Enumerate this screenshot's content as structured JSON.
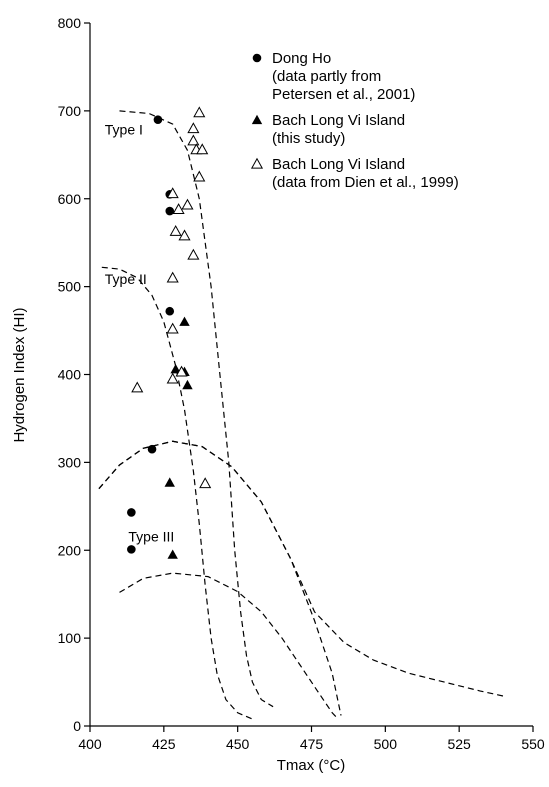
{
  "chart_data": {
    "type": "scatter",
    "title": "",
    "xlabel": "Tmax (°C)",
    "ylabel": "Hydrogen Index (HI)",
    "xlim": [
      400,
      550
    ],
    "ylim": [
      0,
      800
    ],
    "xticks": [
      400,
      425,
      450,
      475,
      500,
      525,
      550
    ],
    "yticks": [
      0,
      100,
      200,
      300,
      400,
      500,
      600,
      700,
      800
    ],
    "grid": false,
    "legend_position": "top-right",
    "series": [
      {
        "name": "Dong Ho",
        "name_line2": "(data partly from",
        "name_line3": "Petersen et al., 2001)",
        "marker": "filled-circle",
        "points": [
          [
            423,
            690
          ],
          [
            427,
            605
          ],
          [
            427,
            586
          ],
          [
            427,
            472
          ],
          [
            421,
            315
          ],
          [
            414,
            243
          ],
          [
            414,
            201
          ]
        ]
      },
      {
        "name": "Bach Long Vi Island",
        "name_line2": "(this study)",
        "name_line3": "",
        "marker": "filled-triangle",
        "points": [
          [
            432,
            460
          ],
          [
            429,
            406
          ],
          [
            432,
            403
          ],
          [
            433,
            388
          ],
          [
            427,
            277
          ],
          [
            428,
            195
          ]
        ]
      },
      {
        "name": "Bach Long Vi Island",
        "name_line2": "(data from Dien et al., 1999)",
        "name_line3": "",
        "marker": "open-triangle",
        "points": [
          [
            437,
            698
          ],
          [
            435,
            680
          ],
          [
            435,
            666
          ],
          [
            436,
            656
          ],
          [
            438,
            656
          ],
          [
            437,
            625
          ],
          [
            428,
            606
          ],
          [
            430,
            588
          ],
          [
            433,
            593
          ],
          [
            429,
            563
          ],
          [
            432,
            558
          ],
          [
            435,
            536
          ],
          [
            428,
            510
          ],
          [
            428,
            452
          ],
          [
            428,
            395
          ],
          [
            431,
            403
          ],
          [
            416,
            385
          ],
          [
            439,
            276
          ]
        ]
      }
    ],
    "type_curves": [
      {
        "label": "Type I",
        "label_at": [
          405,
          673
        ],
        "upper": [
          [
            410,
            700
          ],
          [
            420,
            697
          ],
          [
            428,
            685
          ],
          [
            433,
            655
          ],
          [
            437,
            600
          ],
          [
            441,
            500
          ],
          [
            444,
            400
          ],
          [
            447,
            300
          ],
          [
            449,
            200
          ],
          [
            451,
            130
          ],
          [
            453,
            80
          ],
          [
            455,
            50
          ],
          [
            458,
            30
          ],
          [
            462,
            22
          ]
        ],
        "lower": [
          [
            404,
            522
          ],
          [
            410,
            520
          ],
          [
            416,
            510
          ],
          [
            421,
            490
          ],
          [
            425,
            460
          ],
          [
            429,
            410
          ],
          [
            432,
            360
          ],
          [
            435,
            290
          ],
          [
            437,
            230
          ],
          [
            439,
            160
          ],
          [
            441,
            100
          ],
          [
            443,
            60
          ],
          [
            446,
            30
          ],
          [
            450,
            15
          ],
          [
            455,
            8
          ]
        ]
      },
      {
        "label": "Type II",
        "label_at": [
          405,
          503
        ],
        "upper": [
          [
            403,
            270
          ],
          [
            410,
            297
          ],
          [
            418,
            316
          ],
          [
            428,
            324
          ],
          [
            438,
            318
          ],
          [
            448,
            295
          ],
          [
            458,
            255
          ],
          [
            468,
            190
          ],
          [
            476,
            120
          ],
          [
            482,
            60
          ],
          [
            485,
            12
          ]
        ],
        "lower": [
          [
            410,
            152
          ],
          [
            418,
            168
          ],
          [
            428,
            174
          ],
          [
            440,
            170
          ],
          [
            450,
            153
          ],
          [
            458,
            130
          ],
          [
            465,
            100
          ],
          [
            471,
            70
          ],
          [
            477,
            40
          ],
          [
            482,
            15
          ],
          [
            484,
            8
          ]
        ]
      },
      {
        "label": "Type III",
        "label_at": [
          413,
          210
        ],
        "upper": [
          [
            403,
            270
          ],
          [
            410,
            297
          ],
          [
            418,
            316
          ],
          [
            428,
            324
          ],
          [
            438,
            318
          ],
          [
            448,
            295
          ],
          [
            458,
            255
          ],
          [
            468,
            190
          ],
          [
            476,
            130
          ],
          [
            486,
            95
          ],
          [
            496,
            75
          ],
          [
            508,
            60
          ],
          [
            520,
            50
          ],
          [
            532,
            40
          ],
          [
            540,
            34
          ]
        ],
        "lower": []
      }
    ]
  }
}
